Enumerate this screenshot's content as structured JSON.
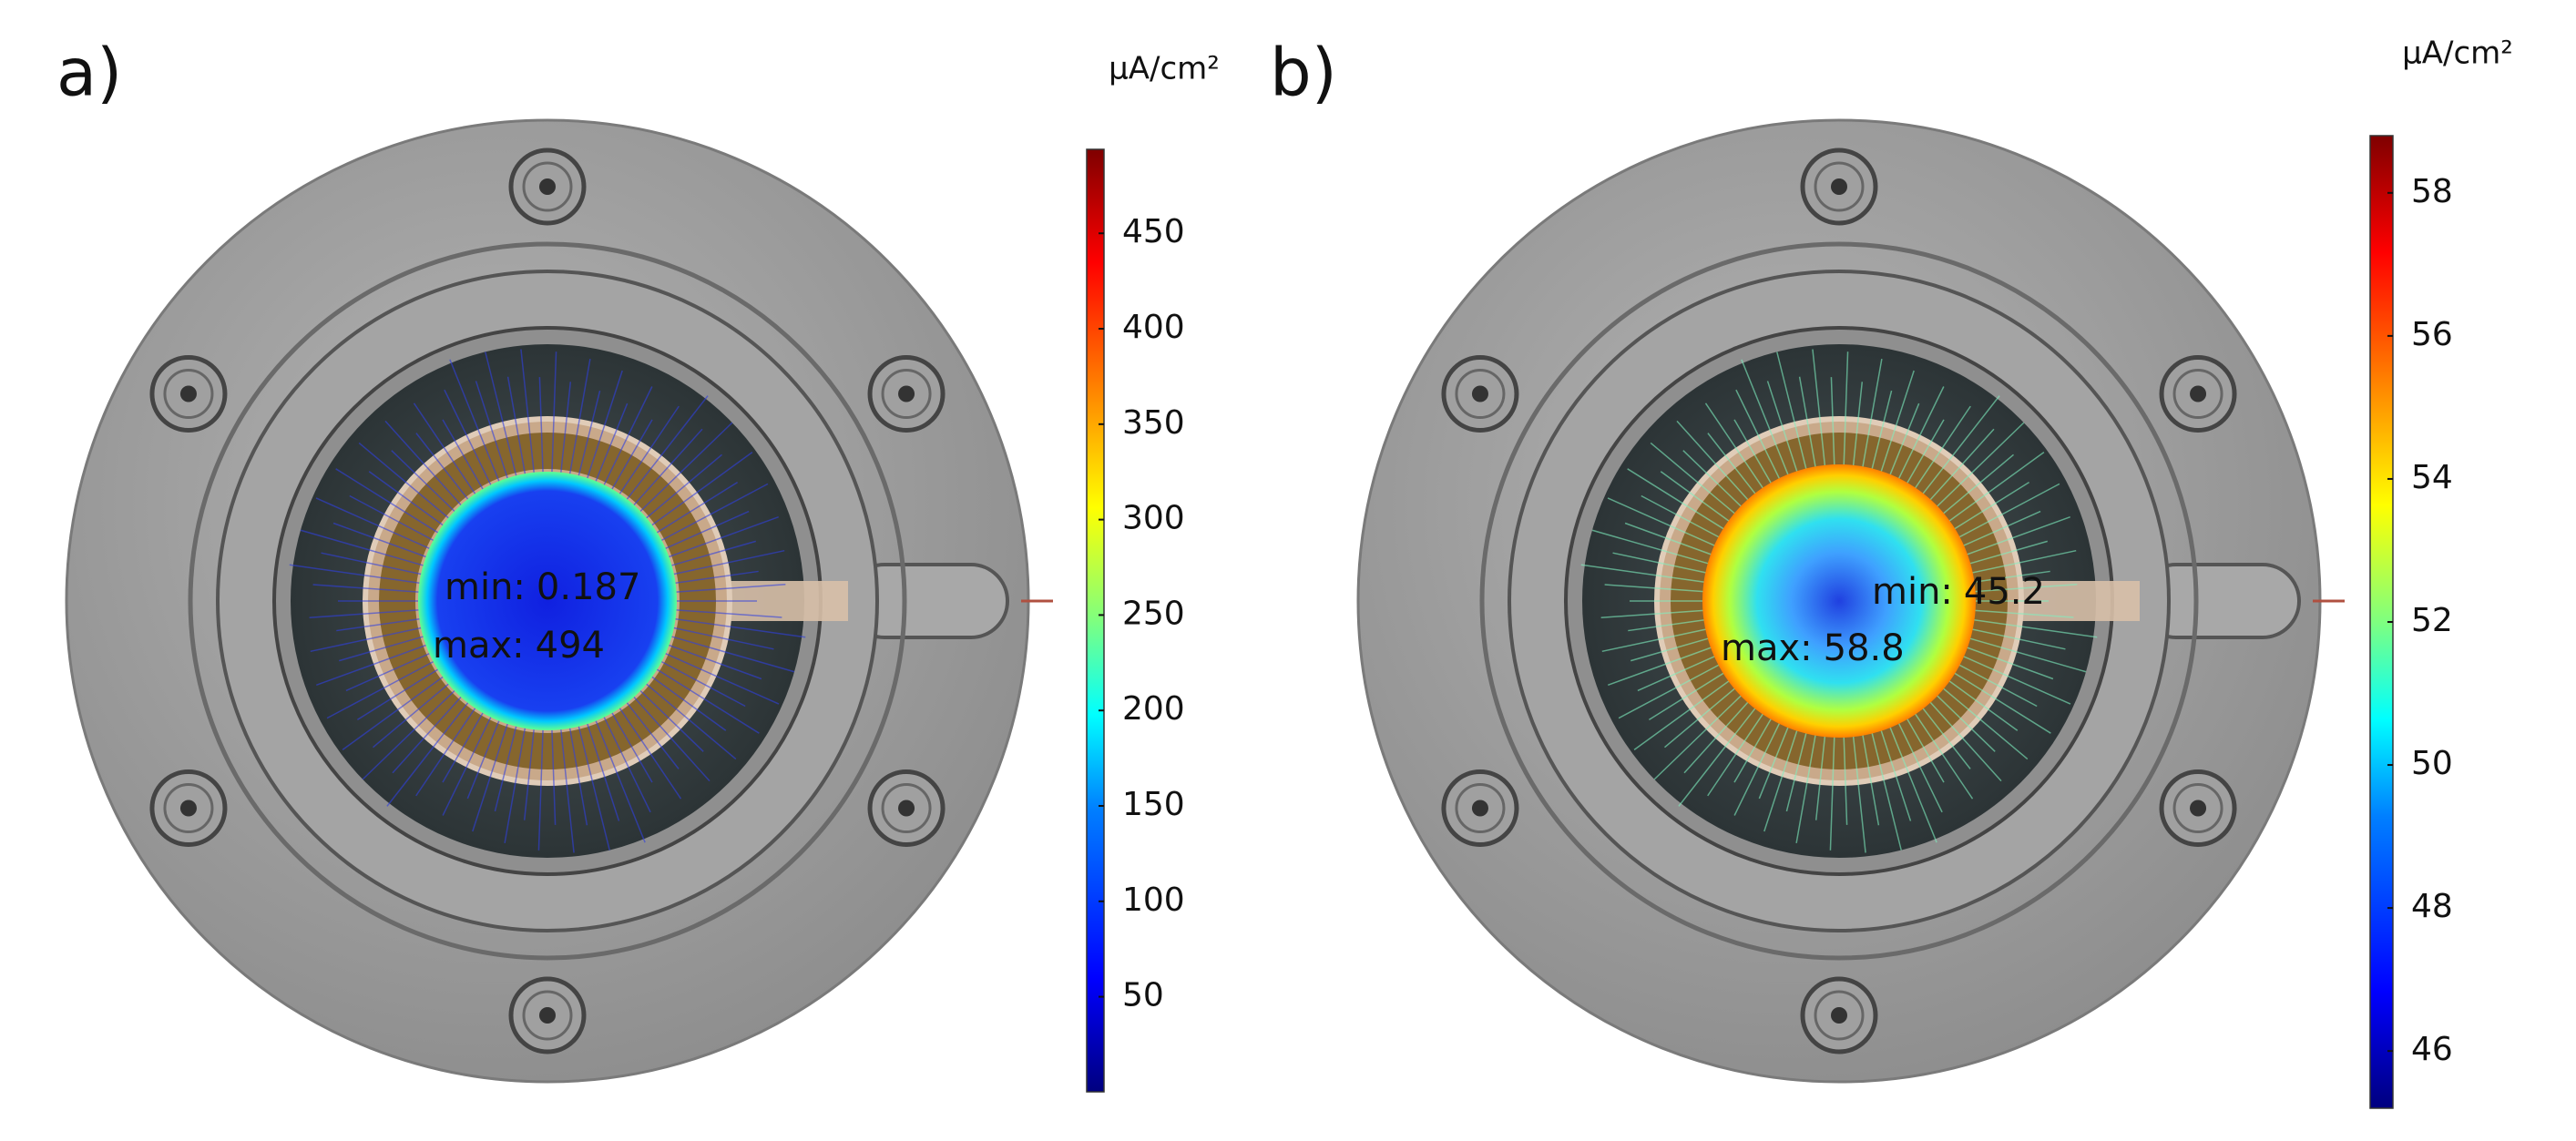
{
  "panels": [
    {
      "label": "a)",
      "unit": "μA/cm²",
      "min_label": "min:",
      "min": 0.187,
      "max_label": "max:",
      "max": 494,
      "colorbar_ticks": [
        50,
        100,
        150,
        200,
        250,
        300,
        350,
        400,
        450
      ]
    },
    {
      "label": "b)",
      "unit": "μA/cm²",
      "min_label": "min:",
      "min": 45.2,
      "max_label": "max:",
      "max": 58.8,
      "colorbar_ticks": [
        46,
        48,
        50,
        52,
        54,
        56,
        58
      ]
    }
  ]
}
